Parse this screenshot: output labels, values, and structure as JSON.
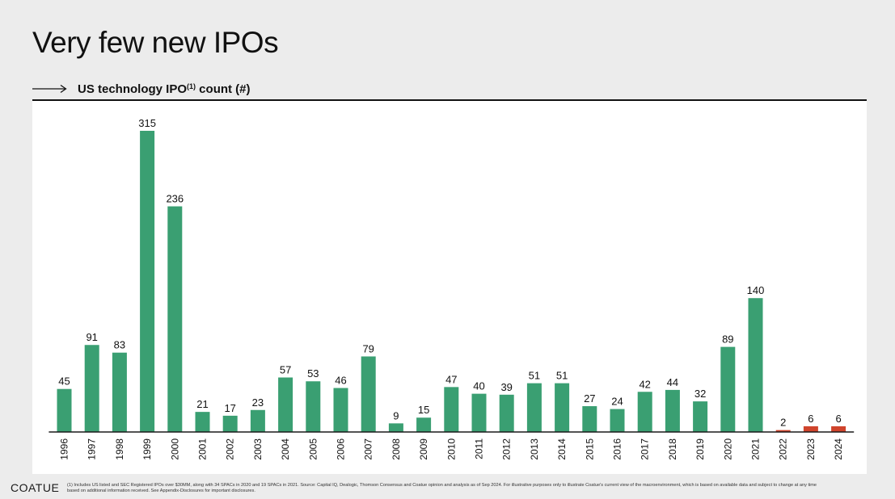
{
  "slide": {
    "title": "Very few new IPOs",
    "subtitle_main": "US technology IPO",
    "subtitle_sup": "(1)",
    "subtitle_tail": " count (#)",
    "brand": "COATUE",
    "footnote": "(1) Includes US listed and SEC Registered IPOs over $30MM, along with 34 SPACs in 2020 and 19 SPACs in 2021. Source: Capital IQ, Dealogic, Thomson Consensus and Coatue opinion and analysis as of Sep 2024. For illustrative purposes only to illustrate Coatue's current view of the macroenvironment, which is based on available data and subject to change at any time based on additional information received. See Appendix-Disclosures for important disclosures."
  },
  "colors": {
    "bar_green": "#3a9f72",
    "bar_red": "#d0442c",
    "axis": "#1a1a1a",
    "label": "#111111"
  },
  "chart_data": {
    "type": "bar",
    "title": "US technology IPO(1) count (#)",
    "xlabel": "",
    "ylabel": "",
    "ylim": [
      0,
      315
    ],
    "grid": false,
    "legend": "none",
    "categories": [
      "1996",
      "1997",
      "1998",
      "1999",
      "2000",
      "2001",
      "2002",
      "2003",
      "2004",
      "2005",
      "2006",
      "2007",
      "2008",
      "2009",
      "2010",
      "2011",
      "2012",
      "2013",
      "2014",
      "2015",
      "2016",
      "2017",
      "2018",
      "2019",
      "2020",
      "2021",
      "2022",
      "2023",
      "2024"
    ],
    "values": [
      45,
      91,
      83,
      315,
      236,
      21,
      17,
      23,
      57,
      53,
      46,
      79,
      9,
      15,
      47,
      40,
      39,
      51,
      51,
      27,
      24,
      42,
      44,
      32,
      89,
      140,
      2,
      6,
      6
    ],
    "highlight_categories": [
      "2022",
      "2023",
      "2024"
    ]
  }
}
